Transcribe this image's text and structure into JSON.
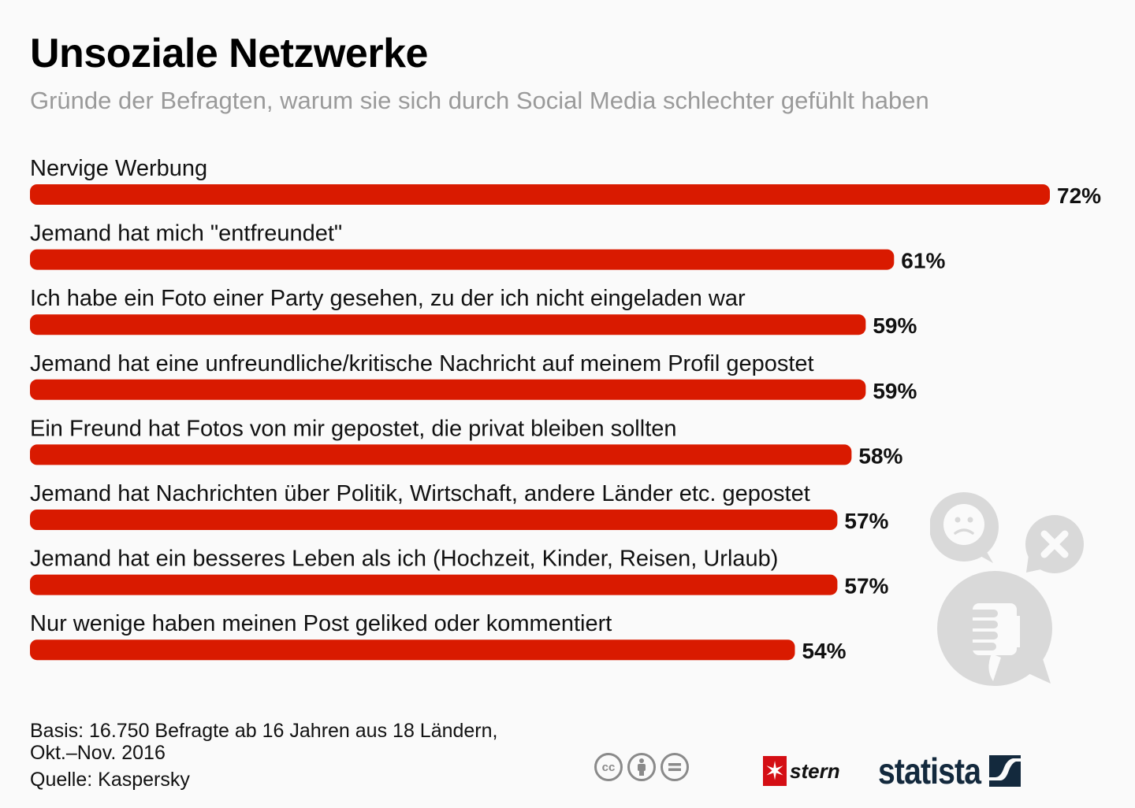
{
  "header": {
    "title": "Unsoziale Netzwerke",
    "subtitle": "Gründe der Befragten, warum sie sich durch Social Media schlechter gefühlt haben"
  },
  "chart_data": {
    "type": "bar",
    "orientation": "horizontal",
    "title": "Unsoziale Netzwerke",
    "subtitle": "Gründe der Befragten, warum sie sich durch Social Media schlechter gefühlt haben",
    "xlabel": "",
    "ylabel": "",
    "unit": "%",
    "xlim": [
      0,
      72
    ],
    "grid": false,
    "bar_color": "#d91a00",
    "categories": [
      "Nervige Werbung",
      "Jemand hat mich \"entfreundet\"",
      "Ich habe ein Foto einer Party gesehen, zu der ich nicht eingeladen war",
      "Jemand hat eine unfreundliche/kritische Nachricht auf meinem Profil gepostet",
      "Ein Freund hat Fotos von mir gepostet, die privat bleiben sollten",
      "Jemand hat Nachrichten über Politik, Wirtschaft, andere Länder etc. gepostet",
      "Jemand hat ein besseres Leben als ich (Hochzeit, Kinder, Reisen, Urlaub)",
      "Nur wenige haben meinen Post geliked oder kommentiert"
    ],
    "values": [
      72,
      61,
      59,
      59,
      58,
      57,
      57,
      54
    ],
    "value_labels": [
      "72%",
      "61%",
      "59%",
      "59%",
      "58%",
      "57%",
      "57%",
      "54%"
    ]
  },
  "illustration": {
    "icons": [
      "sad-face-speech-bubble-icon",
      "x-speech-bubble-icon",
      "thumbs-down-speech-bubble-icon"
    ],
    "color": "#d9d9d9"
  },
  "footer": {
    "basis_line1": "Basis: 16.750 Befragte ab 16 Jahren aus 18 Ländern,",
    "basis_line2": "Okt.–Nov. 2016",
    "source": "Quelle: Kaspersky",
    "cc_label": "cc",
    "partner_logo_text": "stern",
    "brand_logo_text": "statista",
    "brand_color": "#13293d",
    "partner_color": "#d40e14"
  }
}
